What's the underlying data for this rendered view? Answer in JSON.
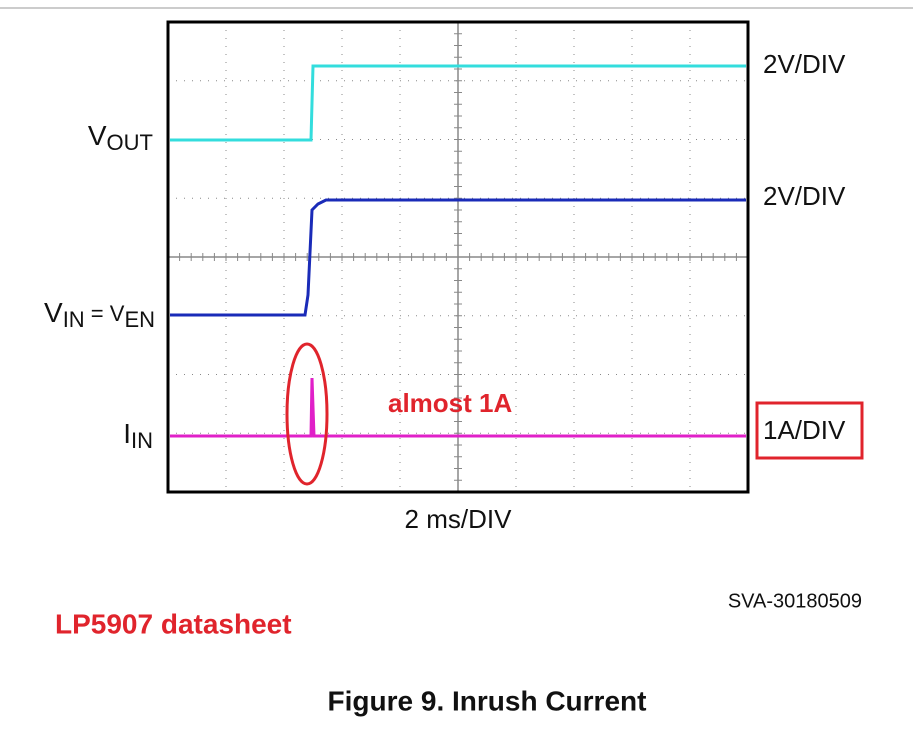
{
  "scope": {
    "channels": [
      {
        "label": {
          "main": "V",
          "sub": "OUT"
        },
        "scale": "2V/DIV"
      },
      {
        "label": {
          "parts": [
            {
              "main": "V",
              "sub": "IN"
            },
            {
              "main": " = V",
              "sub": "EN"
            }
          ]
        },
        "scale": "2V/DIV"
      },
      {
        "label": {
          "main": "I",
          "sub": "IN"
        },
        "scale": "1A/DIV"
      }
    ],
    "annotation": "almost 1A",
    "timebase": "2 ms/DIV",
    "figure_id": "SVA-30180509"
  },
  "note": "LP5907 datasheet",
  "caption": "Figure 9. Inrush Current"
}
